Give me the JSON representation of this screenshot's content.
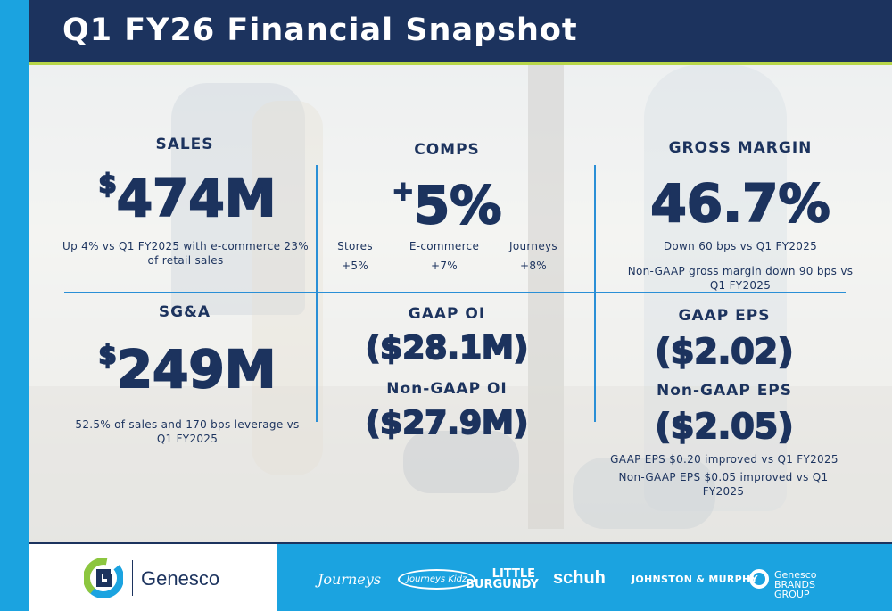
{
  "header": {
    "title": "Q1 FY26 Financial Snapshot"
  },
  "sales": {
    "label": "SALES",
    "currency": "$",
    "value": "474M",
    "note": "Up 4% vs Q1 FY2025 with e-commerce 23% of retail sales"
  },
  "comps": {
    "label": "COMPS",
    "sign": "+",
    "value": "5%",
    "breakdown": [
      {
        "name": "Stores",
        "value": "+5%"
      },
      {
        "name": "E-commerce",
        "value": "+7%"
      },
      {
        "name": "Journeys",
        "value": "+8%"
      }
    ]
  },
  "gross_margin": {
    "label": "GROSS MARGIN",
    "value": "46.7%",
    "note1": "Down 60 bps vs Q1 FY2025",
    "note2": "Non-GAAP gross margin down 90 bps vs Q1 FY2025"
  },
  "sga": {
    "label": "SG&A",
    "currency": "$",
    "value": "249M",
    "note": "52.5% of sales and 170 bps leverage vs Q1 FY2025"
  },
  "oi": {
    "gaap_label": "GAAP OI",
    "gaap_value": "($28.1M)",
    "nongaap_label": "Non-GAAP OI",
    "nongaap_value": "($27.9M)"
  },
  "eps": {
    "gaap_label": "GAAP EPS",
    "gaap_value": "($2.02)",
    "nongaap_label": "Non-GAAP EPS",
    "nongaap_value": "($2.05)",
    "note1": "GAAP EPS $0.20 improved vs Q1 FY2025",
    "note2": "Non-GAAP EPS $0.05 improved vs Q1 FY2025"
  },
  "footer": {
    "company_logo_text": "Genesco",
    "brands": [
      "Journeys",
      "Journeys Kidz",
      "LITTLE BURGUNDY",
      "schuh",
      "JOHNSTON & MURPHY",
      "Genesco BRANDS GROUP"
    ]
  },
  "colors": {
    "navy": "#1c335e",
    "blue": "#1ba3e0",
    "accent_green": "#b8d64a",
    "divider": "#2a8fd6"
  }
}
